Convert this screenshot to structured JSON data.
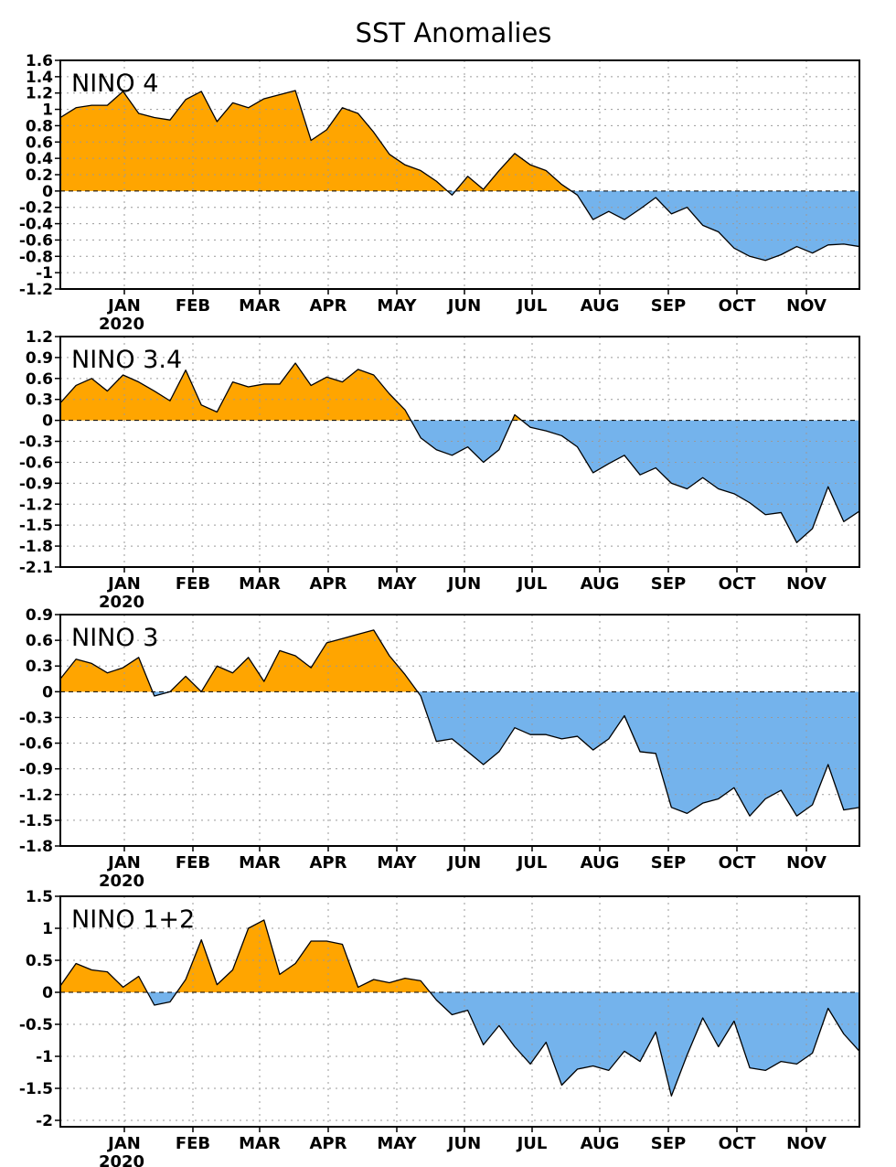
{
  "figure_title": "SST Anomalies",
  "chart_data": [
    {
      "type": "area",
      "label": "NINO 4",
      "positive_color": "#ffa500",
      "negative_color": "#74b3ec",
      "ylim": [
        -1.2,
        1.6
      ],
      "yticks": [
        -1.2,
        -1,
        -0.8,
        -0.6,
        -0.4,
        -0.2,
        0,
        0.2,
        0.4,
        0.6,
        0.8,
        1,
        1.2,
        1.4,
        1.6
      ],
      "ytick_labels": [
        "-1.2",
        "-1",
        "-0.8",
        "-0.6",
        "-0.4",
        "-0.2",
        "0",
        "0.2",
        "0.4",
        "0.6",
        "0.8",
        "1",
        "1.2",
        "1.4",
        "1.6"
      ],
      "month_labels": [
        "JAN",
        "FEB",
        "MAR",
        "APR",
        "MAY",
        "JUN",
        "JUL",
        "AUG",
        "SEP",
        "OCT",
        "NOV"
      ],
      "year_label": "2020",
      "values": [
        0.9,
        1.02,
        1.05,
        1.05,
        1.22,
        0.95,
        0.9,
        0.87,
        1.12,
        1.22,
        0.85,
        1.08,
        1.02,
        1.13,
        1.18,
        1.23,
        0.62,
        0.75,
        1.02,
        0.95,
        0.72,
        0.45,
        0.32,
        0.25,
        0.12,
        -0.05,
        0.18,
        0.02,
        0.25,
        0.46,
        0.32,
        0.25,
        0.08,
        -0.05,
        -0.35,
        -0.25,
        -0.35,
        -0.22,
        -0.08,
        -0.28,
        -0.2,
        -0.42,
        -0.5,
        -0.7,
        -0.8,
        -0.85,
        -0.78,
        -0.68,
        -0.76,
        -0.66,
        -0.65,
        -0.68
      ]
    },
    {
      "type": "area",
      "label": "NINO 3.4",
      "positive_color": "#ffa500",
      "negative_color": "#74b3ec",
      "ylim": [
        -2.1,
        1.2
      ],
      "yticks": [
        -2.1,
        -1.8,
        -1.5,
        -1.2,
        -0.9,
        -0.6,
        -0.3,
        0,
        0.3,
        0.6,
        0.9,
        1.2
      ],
      "ytick_labels": [
        "-2.1",
        "-1.8",
        "-1.5",
        "-1.2",
        "-0.9",
        "-0.6",
        "-0.3",
        "0",
        "0.3",
        "0.6",
        "0.9",
        "1.2"
      ],
      "month_labels": [
        "JAN",
        "FEB",
        "MAR",
        "APR",
        "MAY",
        "JUN",
        "JUL",
        "AUG",
        "SEP",
        "OCT",
        "NOV"
      ],
      "year_label": "2020",
      "values": [
        0.25,
        0.5,
        0.6,
        0.42,
        0.65,
        0.55,
        0.42,
        0.28,
        0.72,
        0.22,
        0.12,
        0.55,
        0.48,
        0.52,
        0.52,
        0.82,
        0.5,
        0.62,
        0.55,
        0.73,
        0.65,
        0.38,
        0.15,
        -0.25,
        -0.42,
        -0.5,
        -0.38,
        -0.6,
        -0.42,
        0.08,
        -0.1,
        -0.15,
        -0.22,
        -0.38,
        -0.75,
        -0.62,
        -0.5,
        -0.78,
        -0.68,
        -0.9,
        -0.98,
        -0.82,
        -0.98,
        -1.05,
        -1.18,
        -1.35,
        -1.32,
        -1.75,
        -1.55,
        -0.95,
        -1.45,
        -1.3
      ]
    },
    {
      "type": "area",
      "label": "NINO 3",
      "positive_color": "#ffa500",
      "negative_color": "#74b3ec",
      "ylim": [
        -1.8,
        0.9
      ],
      "yticks": [
        -1.8,
        -1.5,
        -1.2,
        -0.9,
        -0.6,
        -0.3,
        0,
        0.3,
        0.6,
        0.9
      ],
      "ytick_labels": [
        "-1.8",
        "-1.5",
        "-1.2",
        "-0.9",
        "-0.6",
        "-0.3",
        "0",
        "0.3",
        "0.6",
        "0.9"
      ],
      "month_labels": [
        "JAN",
        "FEB",
        "MAR",
        "APR",
        "MAY",
        "JUN",
        "JUL",
        "AUG",
        "SEP",
        "OCT",
        "NOV"
      ],
      "year_label": "2020",
      "values": [
        0.15,
        0.38,
        0.33,
        0.22,
        0.28,
        0.4,
        -0.05,
        0.0,
        0.18,
        0.0,
        0.3,
        0.22,
        0.4,
        0.12,
        0.48,
        0.42,
        0.28,
        0.57,
        0.62,
        0.67,
        0.72,
        0.42,
        0.2,
        -0.05,
        -0.58,
        -0.55,
        -0.7,
        -0.85,
        -0.7,
        -0.42,
        -0.5,
        -0.5,
        -0.55,
        -0.52,
        -0.68,
        -0.55,
        -0.28,
        -0.7,
        -0.72,
        -1.35,
        -1.42,
        -1.3,
        -1.25,
        -1.12,
        -1.45,
        -1.25,
        -1.15,
        -1.45,
        -1.32,
        -0.85,
        -1.38,
        -1.35
      ]
    },
    {
      "type": "area",
      "label": "NINO 1+2",
      "positive_color": "#ffa500",
      "negative_color": "#74b3ec",
      "ylim": [
        -2.1,
        1.5
      ],
      "yticks": [
        -2,
        -1.5,
        -1,
        -0.5,
        0,
        0.5,
        1,
        1.5
      ],
      "ytick_labels": [
        "-2",
        "-1.5",
        "-1",
        "-0.5",
        "0",
        "0.5",
        "1",
        "1.5"
      ],
      "month_labels": [
        "JAN",
        "FEB",
        "MAR",
        "APR",
        "MAY",
        "JUN",
        "JUL",
        "AUG",
        "SEP",
        "OCT",
        "NOV"
      ],
      "year_label": "2020",
      "values": [
        0.1,
        0.45,
        0.35,
        0.32,
        0.08,
        0.25,
        -0.2,
        -0.15,
        0.2,
        0.82,
        0.12,
        0.35,
        1.0,
        1.13,
        0.28,
        0.45,
        0.8,
        0.8,
        0.75,
        0.08,
        0.2,
        0.15,
        0.22,
        0.18,
        -0.12,
        -0.35,
        -0.28,
        -0.82,
        -0.52,
        -0.85,
        -1.12,
        -0.78,
        -1.45,
        -1.2,
        -1.15,
        -1.22,
        -0.92,
        -1.08,
        -0.62,
        -1.62,
        -0.98,
        -0.4,
        -0.85,
        -0.45,
        -1.18,
        -1.22,
        -1.08,
        -1.12,
        -0.95,
        -0.25,
        -0.65,
        -0.92
      ]
    }
  ]
}
